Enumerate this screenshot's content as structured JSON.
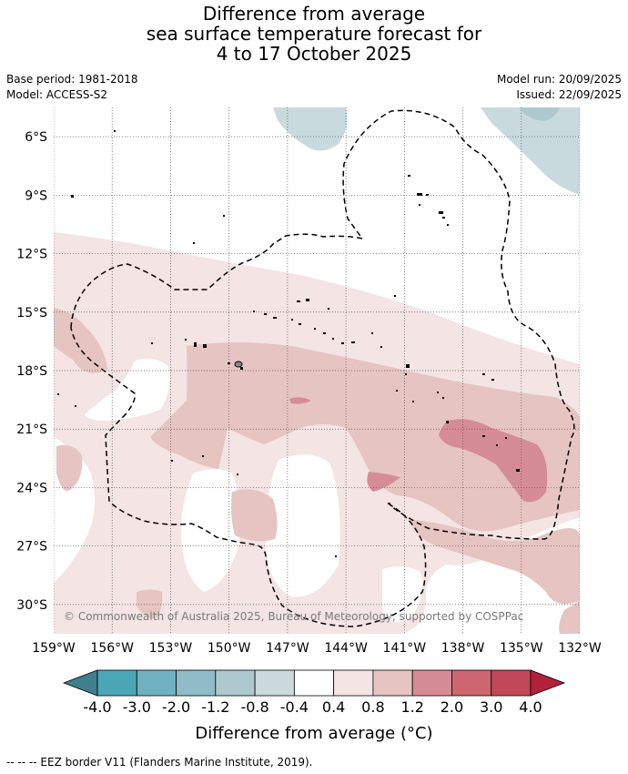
{
  "title": {
    "line1": "Difference from average",
    "line2": "sea surface temperature forecast for",
    "line3": "4 to 17 October 2025"
  },
  "meta": {
    "base_period": "Base period: 1981-2018",
    "model": "Model: ACCESS-S2",
    "model_run": "Model run: 20/09/2025",
    "issued": "Issued: 22/09/2025"
  },
  "axes": {
    "lat_labels": [
      "6°S",
      "9°S",
      "12°S",
      "15°S",
      "18°S",
      "21°S",
      "24°S",
      "27°S",
      "30°S"
    ],
    "lon_labels": [
      "159°W",
      "156°W",
      "153°W",
      "150°W",
      "147°W",
      "144°W",
      "141°W",
      "138°W",
      "135°W",
      "132°W"
    ]
  },
  "map": {
    "credit": "© Commonwealth of Australia 2025, Bureau of Meteorology, supported by COSPPac"
  },
  "colorbar": {
    "tick_labels": [
      "-4.0",
      "-3.0",
      "-2.0",
      "-1.2",
      "-0.8",
      "-0.4",
      "0.4",
      "0.8",
      "1.2",
      "2.0",
      "3.0",
      "4.0"
    ],
    "colors": [
      "#3f808c",
      "#4ba7b6",
      "#6fb1c1",
      "#8fbcc8",
      "#adc9ce",
      "#ccdadd",
      "#ffffff",
      "#f4e4e4",
      "#e6c4c2",
      "#d68c94",
      "#cc6670",
      "#c04858",
      "#b3203c"
    ],
    "label": "Difference from average (°C)"
  },
  "footer": {
    "legend_text": "--  --  -- EEZ border V11 (Flanders Marine Institute, 2019)."
  }
}
